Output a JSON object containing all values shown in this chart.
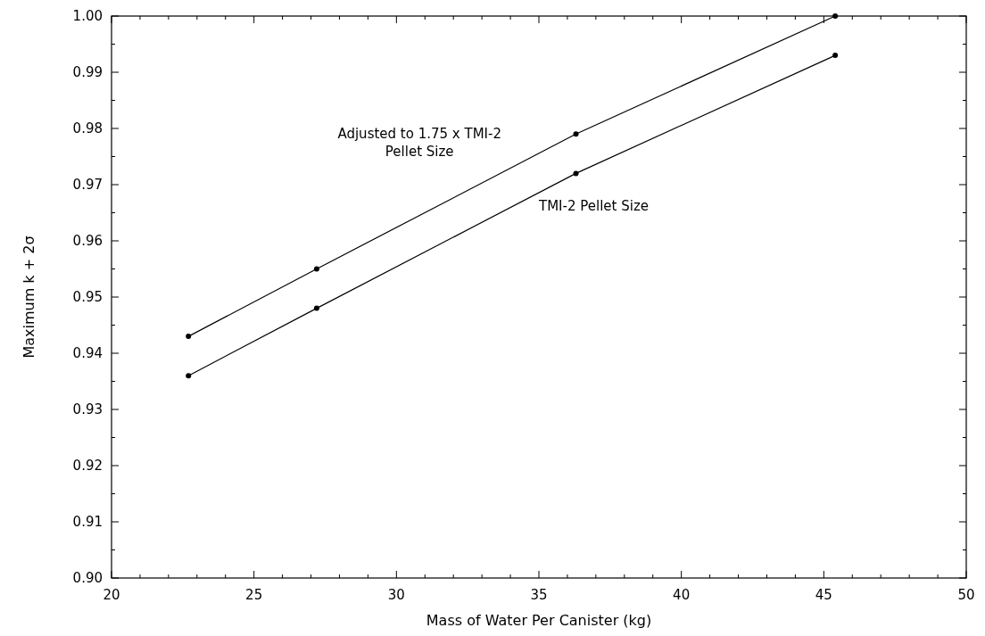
{
  "chart_data": {
    "type": "line",
    "xlabel": "Mass of Water Per Canister (kg)",
    "ylabel": "Maximum k + 2σ",
    "series": [
      {
        "name": "Adjusted to 1.75 x TMI-2\nPellet Size",
        "color": "#000000",
        "x": [
          22.7,
          27.2,
          36.3,
          45.4
        ],
        "values": [
          0.943,
          0.955,
          0.979,
          1.0
        ]
      },
      {
        "name": "TMI-2 Pellet Size",
        "color": "#000000",
        "x": [
          22.7,
          27.2,
          36.3,
          45.4
        ],
        "values": [
          0.936,
          0.948,
          0.972,
          0.993
        ]
      }
    ],
    "xlim": [
      20,
      50
    ],
    "xticks": [
      20,
      {
        "value": 21,
        "label": null
      },
      {
        "value": 22,
        "label": null
      },
      {
        "value": 23,
        "label": null
      },
      {
        "value": 24,
        "label": null
      },
      25,
      {
        "value": 26,
        "label": null
      },
      {
        "value": 27,
        "label": null
      },
      {
        "value": 28,
        "label": null
      },
      {
        "value": 29,
        "label": null
      },
      30,
      {
        "value": 31,
        "label": null
      },
      {
        "value": 32,
        "label": null
      },
      {
        "value": 33,
        "label": null
      },
      {
        "value": 34,
        "label": null
      },
      35,
      {
        "value": 36,
        "label": null
      },
      {
        "value": 37,
        "label": null
      },
      {
        "value": 38,
        "label": null
      },
      {
        "value": 39,
        "label": null
      },
      40,
      {
        "value": 41,
        "label": null
      },
      {
        "value": 42,
        "label": null
      },
      {
        "value": 43,
        "label": null
      },
      {
        "value": 44,
        "label": null
      },
      45,
      {
        "value": 46,
        "label": null
      },
      {
        "value": 47,
        "label": null
      },
      {
        "value": 48,
        "label": null
      },
      {
        "value": 49,
        "label": null
      },
      50
    ],
    "ylim": [
      0.9,
      1.0
    ],
    "yticks": [
      {
        "value": 0.9,
        "label": "0.90"
      },
      {
        "value": 0.905,
        "label": null
      },
      {
        "value": 0.91,
        "label": "0.91"
      },
      {
        "value": 0.915,
        "label": null
      },
      {
        "value": 0.92,
        "label": "0.92"
      },
      {
        "value": 0.925,
        "label": null
      },
      {
        "value": 0.93,
        "label": "0.93"
      },
      {
        "value": 0.935,
        "label": null
      },
      {
        "value": 0.94,
        "label": "0.94"
      },
      {
        "value": 0.945,
        "label": null
      },
      {
        "value": 0.95,
        "label": "0.95"
      },
      {
        "value": 0.955,
        "label": null
      },
      {
        "value": 0.96,
        "label": "0.96"
      },
      {
        "value": 0.965,
        "label": null
      },
      {
        "value": 0.97,
        "label": "0.97"
      },
      {
        "value": 0.975,
        "label": null
      },
      {
        "value": 0.98,
        "label": "0.98"
      },
      {
        "value": 0.985,
        "label": null
      },
      {
        "value": 0.99,
        "label": "0.99"
      },
      {
        "value": 0.995,
        "label": null
      },
      {
        "value": 1.0,
        "label": "1.00"
      }
    ],
    "grid": false,
    "marker": "circle",
    "line_style": "solid"
  }
}
